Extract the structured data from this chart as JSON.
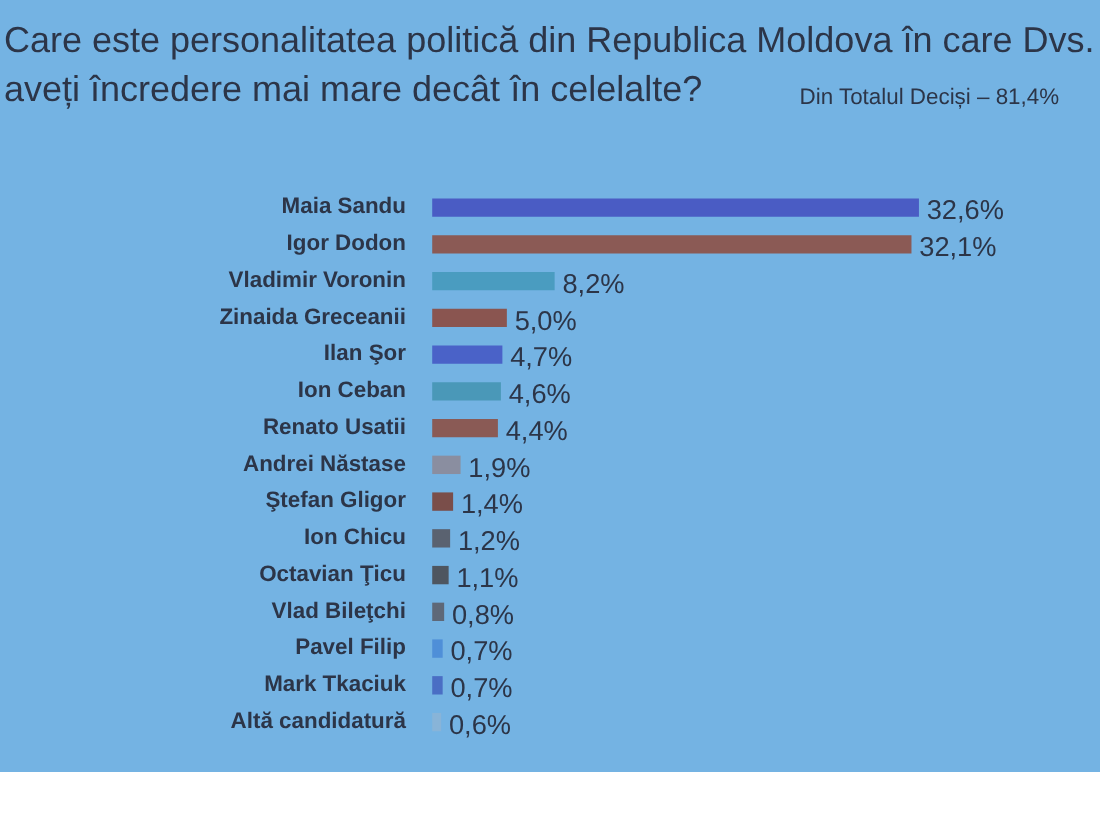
{
  "chart_data": {
    "type": "bar",
    "orientation": "horizontal",
    "title": "Care este personalitatea politică din Republica Moldova în care Dvs. aveți încredere mai mare decât în celelalte?",
    "subtitle": "Din Totalul Deciși – 81,4%",
    "categories": [
      "Maia Sandu",
      "Igor Dodon",
      "Vladimir Voronin",
      "Zinaida Greceanii",
      "Ilan Şor",
      "Ion Ceban",
      "Renato Usatii",
      "Andrei Năstase",
      "Ştefan Gligor",
      "Ion Chicu",
      "Octavian Ţicu",
      "Vlad Bileţchi",
      "Pavel Filip",
      "Mark Tkaciuk",
      "Altă candidatură"
    ],
    "values": [
      32.6,
      32.1,
      8.2,
      5.0,
      4.7,
      4.6,
      4.4,
      1.9,
      1.4,
      1.2,
      1.1,
      0.8,
      0.7,
      0.7,
      0.6
    ],
    "colors": [
      "#4a5cc4",
      "#8b5a55",
      "#4a9cc0",
      "#8a5550",
      "#4a62c8",
      "#4a98b8",
      "#8a5a55",
      "#8a8ea0",
      "#7a4e4a",
      "#5a6270",
      "#4e5660",
      "#5e6878",
      "#4f8fd8",
      "#4a6ec4",
      "#88b4d8"
    ],
    "value_labels": [
      "32,6%",
      "32,1%",
      "8,2%",
      "5,0%",
      "4,7%",
      "4,6%",
      "4,4%",
      "1,9%",
      "1,4%",
      "1,2%",
      "1,1%",
      "0,8%",
      "0,7%",
      "0,7%",
      "0,6%"
    ]
  }
}
